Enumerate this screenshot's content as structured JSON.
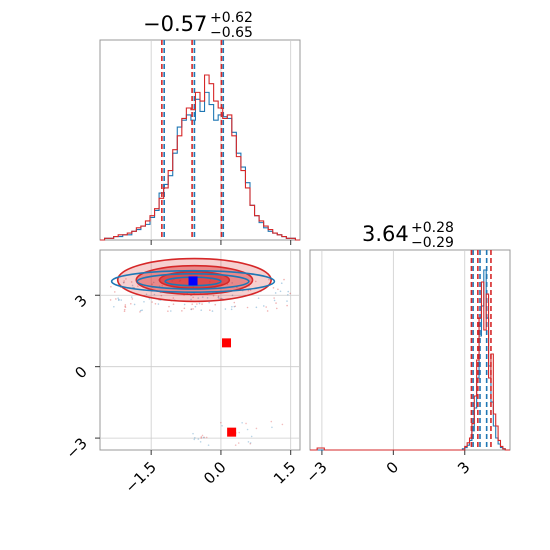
{
  "chart_data": [
    {
      "type": "histogram",
      "panel": "top-left",
      "parameter_index": 0,
      "title": {
        "median": "−0.57",
        "plus": "+0.62",
        "minus": "−0.65"
      },
      "xlim": [
        -2.6,
        1.7
      ],
      "grid": true,
      "series": [
        {
          "name": "",
          "color": "#1f77b4",
          "step_values": [
            0,
            1,
            1,
            2,
            2,
            3,
            3,
            5,
            6,
            8,
            9,
            13,
            17,
            27,
            32,
            37,
            50,
            65,
            69,
            72,
            69,
            81,
            74,
            85,
            78,
            69,
            72,
            71,
            70,
            62,
            50,
            42,
            33,
            20,
            14,
            10,
            7,
            5,
            4,
            3,
            2,
            1,
            1,
            0
          ],
          "quantile_lines": [
            -1.22,
            -0.57,
            0.05
          ]
        },
        {
          "name": "",
          "color": "#d62728",
          "step_values": [
            0,
            1,
            1,
            2,
            3,
            3,
            4,
            5,
            7,
            8,
            11,
            14,
            18,
            24,
            30,
            40,
            52,
            60,
            70,
            76,
            75,
            85,
            80,
            95,
            90,
            80,
            76,
            70,
            72,
            60,
            48,
            40,
            30,
            20,
            14,
            11,
            8,
            6,
            4,
            3,
            2,
            1,
            1,
            0
          ],
          "quantile_lines": [
            -1.27,
            -0.62,
            0.01
          ]
        }
      ]
    },
    {
      "type": "contour-scatter",
      "panel": "bottom-left",
      "xlim": [
        -2.6,
        1.7
      ],
      "ylim": [
        -3.5,
        4.9
      ],
      "xticks": [
        "−1.5",
        "0.0",
        "1.5"
      ],
      "yticks": [
        "−3",
        "0",
        "3"
      ],
      "ytick_values": [
        -3,
        0,
        3
      ],
      "xtick_values": [
        -1.5,
        0.0,
        1.5
      ],
      "grid": true,
      "contours": [
        {
          "color": "#d62728",
          "center": [
            -0.57,
            3.64
          ],
          "half_widths": [
            [
              1.65,
              0.9
            ],
            [
              1.25,
              0.6
            ],
            [
              0.75,
              0.35
            ]
          ]
        },
        {
          "color": "#1f77b4",
          "center": [
            -0.6,
            3.58
          ],
          "half_widths": [
            [
              1.75,
              0.45
            ],
            [
              1.2,
              0.32
            ],
            [
              0.6,
              0.18
            ]
          ]
        }
      ],
      "markers": [
        {
          "color": "#ff0000",
          "x": 0.12,
          "y": 1.0,
          "shape": "square"
        },
        {
          "color": "#ff0000",
          "x": 0.23,
          "y": -2.75,
          "shape": "square"
        },
        {
          "color": "#0000ff",
          "x": -0.6,
          "y": 3.6,
          "shape": "square"
        }
      ]
    },
    {
      "type": "histogram",
      "panel": "bottom-right",
      "parameter_index": 1,
      "title": {
        "median": "3.64",
        "plus": "+0.28",
        "minus": "−0.29"
      },
      "xlim": [
        -3.5,
        4.9
      ],
      "xticks": [
        "−3",
        "0",
        "3"
      ],
      "xtick_values": [
        -3,
        0,
        3
      ],
      "grid": true,
      "series": [
        {
          "name": "",
          "color": "#1f77b4",
          "bins_from": 2.9,
          "bins_step": 0.1,
          "step_values": [
            1,
            2,
            4,
            8,
            16,
            35,
            60,
            95,
            120,
            150,
            110,
            70,
            40,
            20,
            10,
            5,
            2,
            1
          ],
          "quantile_lines": [
            3.35,
            3.64,
            3.92
          ]
        },
        {
          "name": "",
          "color": "#d62728",
          "bins_from": 2.9,
          "bins_step": 0.1,
          "step_values": [
            0,
            3,
            6,
            10,
            22,
            45,
            75,
            110,
            140,
            100,
            130,
            60,
            80,
            30,
            20,
            8,
            3,
            1
          ],
          "quantile_lines": [
            3.28,
            3.55,
            4.1
          ]
        }
      ]
    }
  ]
}
